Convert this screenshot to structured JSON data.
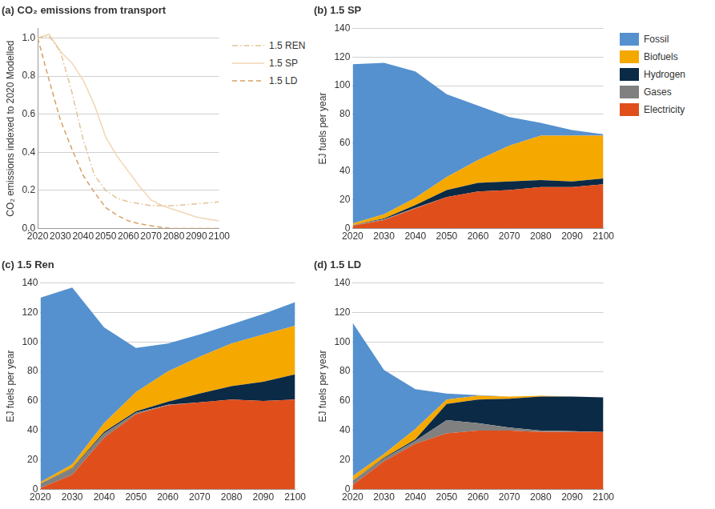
{
  "chart_data": [
    {
      "type": "line",
      "title": "(a) CO₂ emissions from transport",
      "y_label": "CO₂ emissions indexed to 2020 Modelled",
      "x": [
        2020,
        2025,
        2030,
        2035,
        2040,
        2045,
        2050,
        2055,
        2060,
        2065,
        2070,
        2075,
        2080,
        2085,
        2090,
        2095,
        2100
      ],
      "series": [
        {
          "name": "1.5 REN",
          "color": "#e3c39a",
          "line_style": "dashdot",
          "values": [
            1.0,
            1.01,
            0.93,
            0.72,
            0.47,
            0.28,
            0.2,
            0.16,
            0.14,
            0.13,
            0.12,
            0.12,
            0.12,
            0.125,
            0.13,
            0.135,
            0.14
          ]
        },
        {
          "name": "1.5 SP",
          "color": "#f1d6b3",
          "line_style": "solid",
          "values": [
            1.0,
            1.02,
            0.93,
            0.87,
            0.78,
            0.65,
            0.48,
            0.38,
            0.3,
            0.22,
            0.15,
            0.12,
            0.1,
            0.08,
            0.06,
            0.05,
            0.04
          ]
        },
        {
          "name": "1.5 LD",
          "color": "#d6a066",
          "line_style": "dashed",
          "values": [
            1.0,
            0.78,
            0.57,
            0.42,
            0.28,
            0.19,
            0.11,
            0.07,
            0.04,
            0.025,
            0.015,
            0.005,
            0.0,
            0.0,
            0.0,
            0.0,
            0.0
          ]
        }
      ],
      "xlim": [
        2020,
        2100
      ],
      "xticks": [
        2020,
        2030,
        2040,
        2050,
        2060,
        2070,
        2080,
        2090,
        2100
      ],
      "ylim": [
        0,
        1.05
      ],
      "yticks": [
        {
          "value": 0,
          "label": "0.0"
        },
        0.2,
        0.4,
        0.6,
        0.8,
        {
          "value": 1,
          "label": "1.0"
        }
      ],
      "grid": true,
      "legend": "right"
    },
    {
      "type": "area",
      "title": "(b) 1.5 SP",
      "y_label": "EJ fuels per year",
      "stacked": true,
      "x": [
        2020,
        2030,
        2040,
        2050,
        2060,
        2070,
        2080,
        2090,
        2100
      ],
      "series": [
        {
          "name": "Fossil",
          "color": "#5591cf",
          "values": [
            111.5,
            106,
            88.5,
            58,
            38,
            20,
            9,
            4,
            1
          ]
        },
        {
          "name": "Biofuels",
          "color": "#f5a800",
          "values": [
            1,
            3,
            5,
            9,
            16,
            25,
            31,
            32,
            30
          ]
        },
        {
          "name": "Hydrogen",
          "color": "#0b2a45",
          "values": [
            0,
            0.5,
            2,
            5,
            6,
            6,
            5,
            4,
            4
          ]
        },
        {
          "name": "Gases",
          "color": "#808080",
          "values": [
            0.5,
            0.5,
            0.5,
            0,
            0,
            0,
            0,
            0,
            0
          ]
        },
        {
          "name": "Electricity",
          "color": "#e04e1b",
          "values": [
            2,
            6,
            14,
            22,
            26,
            27,
            29,
            29,
            31
          ]
        }
      ],
      "xlim": [
        2020,
        2100
      ],
      "xticks": [
        2020,
        2030,
        2040,
        2050,
        2060,
        2070,
        2080,
        2090,
        2100
      ],
      "ylim": [
        0,
        140
      ],
      "yticks": [
        0,
        20,
        40,
        60,
        80,
        100,
        120,
        140
      ],
      "grid": true,
      "legend": "right"
    },
    {
      "type": "area",
      "title": "(c) 1.5 Ren",
      "y_label": "EJ fuels per year",
      "stacked": true,
      "x": [
        2020,
        2030,
        2040,
        2050,
        2060,
        2070,
        2080,
        2090,
        2100
      ],
      "series": [
        {
          "name": "Fossil",
          "color": "#5591cf",
          "values": [
            125,
            120,
            65,
            30,
            19,
            15,
            13,
            14,
            16
          ]
        },
        {
          "name": "Biofuels",
          "color": "#f5a800",
          "values": [
            1,
            2.5,
            6,
            13,
            20.5,
            25,
            29,
            32,
            33
          ]
        },
        {
          "name": "Hydrogen",
          "color": "#0b2a45",
          "values": [
            0,
            0.5,
            1,
            1,
            2,
            6,
            9,
            13,
            17
          ]
        },
        {
          "name": "Gases",
          "color": "#808080",
          "values": [
            3,
            4,
            3,
            1,
            0.5,
            0,
            0,
            0,
            0
          ]
        },
        {
          "name": "Electricity",
          "color": "#e04e1b",
          "values": [
            1,
            10,
            35,
            51,
            57,
            59,
            61,
            60,
            61
          ]
        }
      ],
      "xlim": [
        2020,
        2100
      ],
      "xticks": [
        2020,
        2030,
        2040,
        2050,
        2060,
        2070,
        2080,
        2090,
        2100
      ],
      "ylim": [
        0,
        140
      ],
      "yticks": [
        0,
        20,
        40,
        60,
        80,
        100,
        120,
        140
      ],
      "grid": true
    },
    {
      "type": "area",
      "title": "(d) 1.5 LD",
      "y_label": "EJ fuels per year",
      "stacked": true,
      "x": [
        2020,
        2030,
        2040,
        2050,
        2060,
        2070,
        2080,
        2090,
        2100
      ],
      "series": [
        {
          "name": "Fossil",
          "color": "#5591cf",
          "values": [
            104,
            57,
            27,
            4,
            0.5,
            0,
            0,
            0,
            0
          ]
        },
        {
          "name": "Biofuels",
          "color": "#f5a800",
          "values": [
            3,
            2.5,
            7,
            3,
            2.5,
            1.5,
            0.5,
            0,
            0
          ]
        },
        {
          "name": "Hydrogen",
          "color": "#0b2a45",
          "values": [
            0,
            0.5,
            1,
            11,
            16,
            19.5,
            23,
            23.5,
            23.5
          ]
        },
        {
          "name": "Gases",
          "color": "#808080",
          "values": [
            3,
            2,
            2,
            9,
            5,
            2,
            1,
            0.5,
            0
          ]
        },
        {
          "name": "Electricity",
          "color": "#e04e1b",
          "values": [
            3,
            19,
            31,
            38,
            40,
            40,
            39,
            39,
            39
          ]
        }
      ],
      "xlim": [
        2020,
        2100
      ],
      "xticks": [
        2020,
        2030,
        2040,
        2050,
        2060,
        2070,
        2080,
        2090,
        2100
      ],
      "ylim": [
        0,
        140
      ],
      "yticks": [
        0,
        20,
        40,
        60,
        80,
        100,
        120,
        140
      ],
      "grid": true
    }
  ]
}
